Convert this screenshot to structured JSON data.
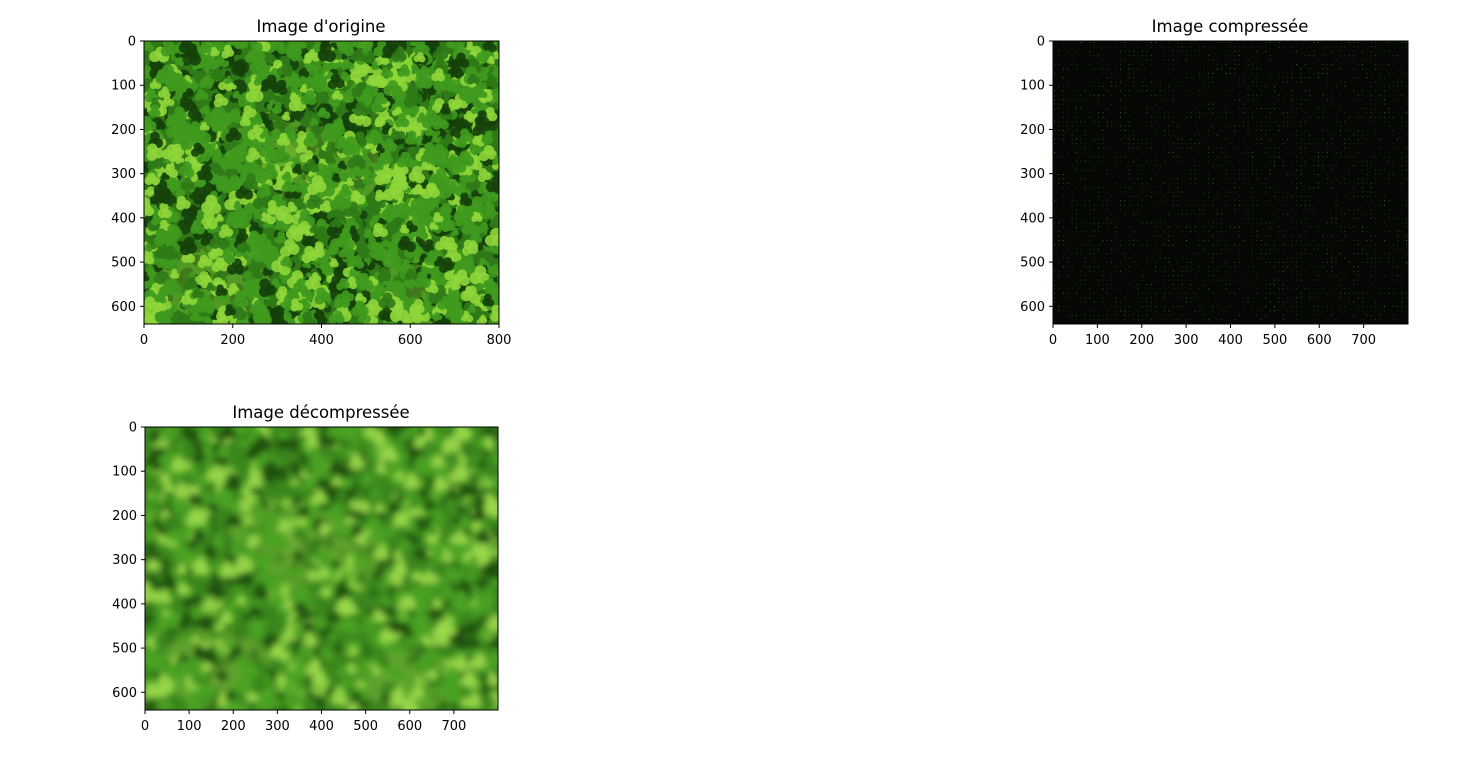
{
  "chart_data": [
    {
      "type": "image",
      "id": "original",
      "title": "Image d'origine",
      "x_ticks": [
        0,
        200,
        400,
        600,
        800
      ],
      "y_ticks": [
        0,
        100,
        200,
        300,
        400,
        500,
        600
      ],
      "xlim": [
        0,
        800
      ],
      "ylim": [
        640,
        0
      ],
      "image_style": "sharp clover and grass texture, bright green with lighter patches",
      "colors": {
        "base": "#2f7a17",
        "dark": "#14400a",
        "mid": "#3f9a1e",
        "light": "#8fd63a"
      }
    },
    {
      "type": "image",
      "id": "compressed",
      "title": "Image compressée",
      "x_ticks": [
        0,
        100,
        200,
        300,
        400,
        500,
        600,
        700
      ],
      "y_ticks": [
        0,
        100,
        200,
        300,
        400,
        500,
        600
      ],
      "xlim": [
        0,
        800
      ],
      "ylim": [
        640,
        0
      ],
      "image_style": "near-black image with sparse faint green dots on a regular grid",
      "colors": {
        "base": "#050705",
        "dot": "#2a4a1a",
        "dot_bright": "#4a7a28"
      }
    },
    {
      "type": "image",
      "id": "decompressed",
      "title": "Image décompressée",
      "x_ticks": [
        0,
        100,
        200,
        300,
        400,
        500,
        600,
        700
      ],
      "y_ticks": [
        0,
        100,
        200,
        300,
        400,
        500,
        600
      ],
      "xlim": [
        0,
        800
      ],
      "ylim": [
        640,
        0
      ],
      "image_style": "blurred blocky version of the clover texture",
      "colors": {
        "base": "#3a861c",
        "dark": "#1c4f0e",
        "mid": "#4aa322",
        "light": "#9ad84a"
      }
    }
  ]
}
